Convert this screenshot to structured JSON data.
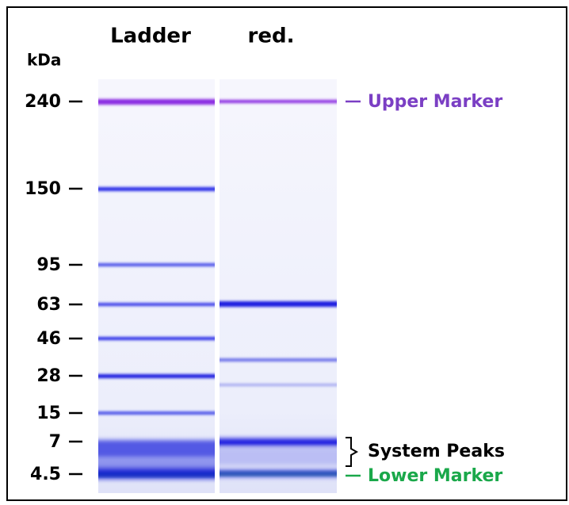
{
  "lanes": [
    "Ladder",
    "red."
  ],
  "unit": "kDa",
  "ladder_labels": [
    "240",
    "150",
    "95",
    "63",
    "46",
    "28",
    "15",
    "7",
    "4.5"
  ],
  "annotations": {
    "upper_marker": "Upper Marker",
    "system_peaks": "System Peaks",
    "lower_marker": "Lower Marker"
  }
}
